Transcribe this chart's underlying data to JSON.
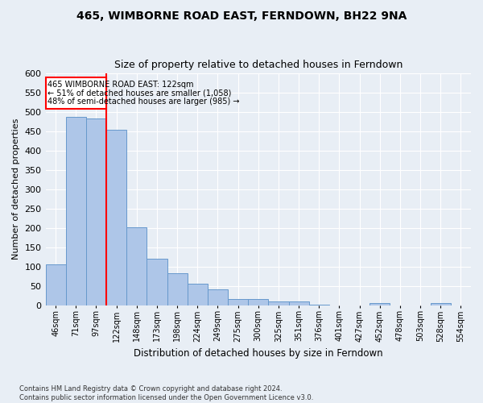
{
  "title": "465, WIMBORNE ROAD EAST, FERNDOWN, BH22 9NA",
  "subtitle": "Size of property relative to detached houses in Ferndown",
  "xlabel_bottom": "Distribution of detached houses by size in Ferndown",
  "ylabel": "Number of detached properties",
  "footnote": "Contains HM Land Registry data © Crown copyright and database right 2024.\nContains public sector information licensed under the Open Government Licence v3.0.",
  "categories": [
    "46sqm",
    "71sqm",
    "97sqm",
    "122sqm",
    "148sqm",
    "173sqm",
    "198sqm",
    "224sqm",
    "249sqm",
    "275sqm",
    "300sqm",
    "325sqm",
    "351sqm",
    "376sqm",
    "401sqm",
    "427sqm",
    "452sqm",
    "478sqm",
    "503sqm",
    "528sqm",
    "554sqm"
  ],
  "values": [
    105,
    487,
    484,
    454,
    202,
    120,
    83,
    56,
    40,
    15,
    15,
    10,
    10,
    1,
    0,
    0,
    6,
    0,
    0,
    6,
    0
  ],
  "bar_color": "#aec6e8",
  "bar_edge_color": "#6699cc",
  "red_line_index": 3,
  "annotation_line1": "465 WIMBORNE ROAD EAST: 122sqm",
  "annotation_line2": "← 51% of detached houses are smaller (1,058)",
  "annotation_line3": "48% of semi-detached houses are larger (985) →",
  "ylim": [
    0,
    600
  ],
  "yticks": [
    0,
    50,
    100,
    150,
    200,
    250,
    300,
    350,
    400,
    450,
    500,
    550,
    600
  ],
  "background_color": "#e8eef5",
  "plot_background": "#e8eef5",
  "grid_color": "#ffffff",
  "title_fontsize": 10,
  "subtitle_fontsize": 9
}
